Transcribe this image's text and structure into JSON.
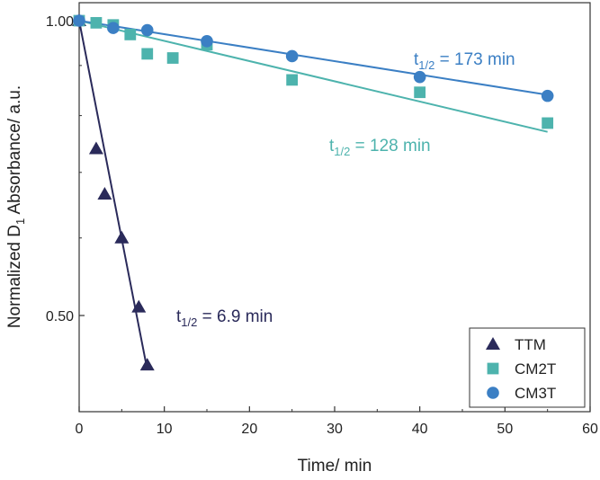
{
  "chart_data": {
    "type": "scatter",
    "xlabel": "Time/ min",
    "ylabel": {
      "prefix": "Normalized D",
      "sub": "1",
      "suffix": " Absorbance/ a.u."
    },
    "x_ticks": [
      "0",
      "10",
      "20",
      "30",
      "40",
      "50",
      "60"
    ],
    "y_ticks": [
      "1.00",
      "0.50"
    ],
    "xlim": [
      0,
      60
    ],
    "ylim": [
      0.4,
      1.0
    ],
    "y_scale": "log",
    "grid": false,
    "legend_position": "bottom-right",
    "series": [
      {
        "name": "TTM",
        "marker": "triangle",
        "color": "#2a2a5a",
        "points": [
          [
            0,
            1.0
          ],
          [
            2,
            0.74
          ],
          [
            3,
            0.665
          ],
          [
            5,
            0.6
          ],
          [
            7,
            0.51
          ],
          [
            8,
            0.445
          ]
        ],
        "fit": {
          "x_from": 0,
          "x_to": 8,
          "y_from": 1.0,
          "y_to": 0.44
        },
        "annotation": {
          "prefix": "t",
          "sub": "1/2",
          "suffix": " = 6.9 min"
        }
      },
      {
        "name": "CM2T",
        "marker": "square",
        "color": "#4db3ad",
        "points": [
          [
            0,
            1.0
          ],
          [
            2,
            0.995
          ],
          [
            4,
            0.99
          ],
          [
            6,
            0.968
          ],
          [
            8,
            0.925
          ],
          [
            11,
            0.916
          ],
          [
            15,
            0.945
          ],
          [
            25,
            0.87
          ],
          [
            40,
            0.845
          ],
          [
            55,
            0.786
          ]
        ],
        "fit": {
          "x_from": 0,
          "x_to": 55,
          "y_from": 1.0,
          "y_to": 0.77
        },
        "annotation": {
          "prefix": "t",
          "sub": "1/2",
          "suffix": " = 128 min"
        }
      },
      {
        "name": "CM3T",
        "marker": "circle",
        "color": "#3b7fc4",
        "points": [
          [
            0,
            1.0
          ],
          [
            4,
            0.983
          ],
          [
            8,
            0.978
          ],
          [
            15,
            0.953
          ],
          [
            25,
            0.92
          ],
          [
            40,
            0.876
          ],
          [
            55,
            0.838
          ]
        ],
        "fit": {
          "x_from": 0,
          "x_to": 55,
          "y_from": 1.0,
          "y_to": 0.84
        },
        "annotation": {
          "prefix": "t",
          "sub": "1/2",
          "suffix": " = 173 min"
        }
      }
    ]
  }
}
